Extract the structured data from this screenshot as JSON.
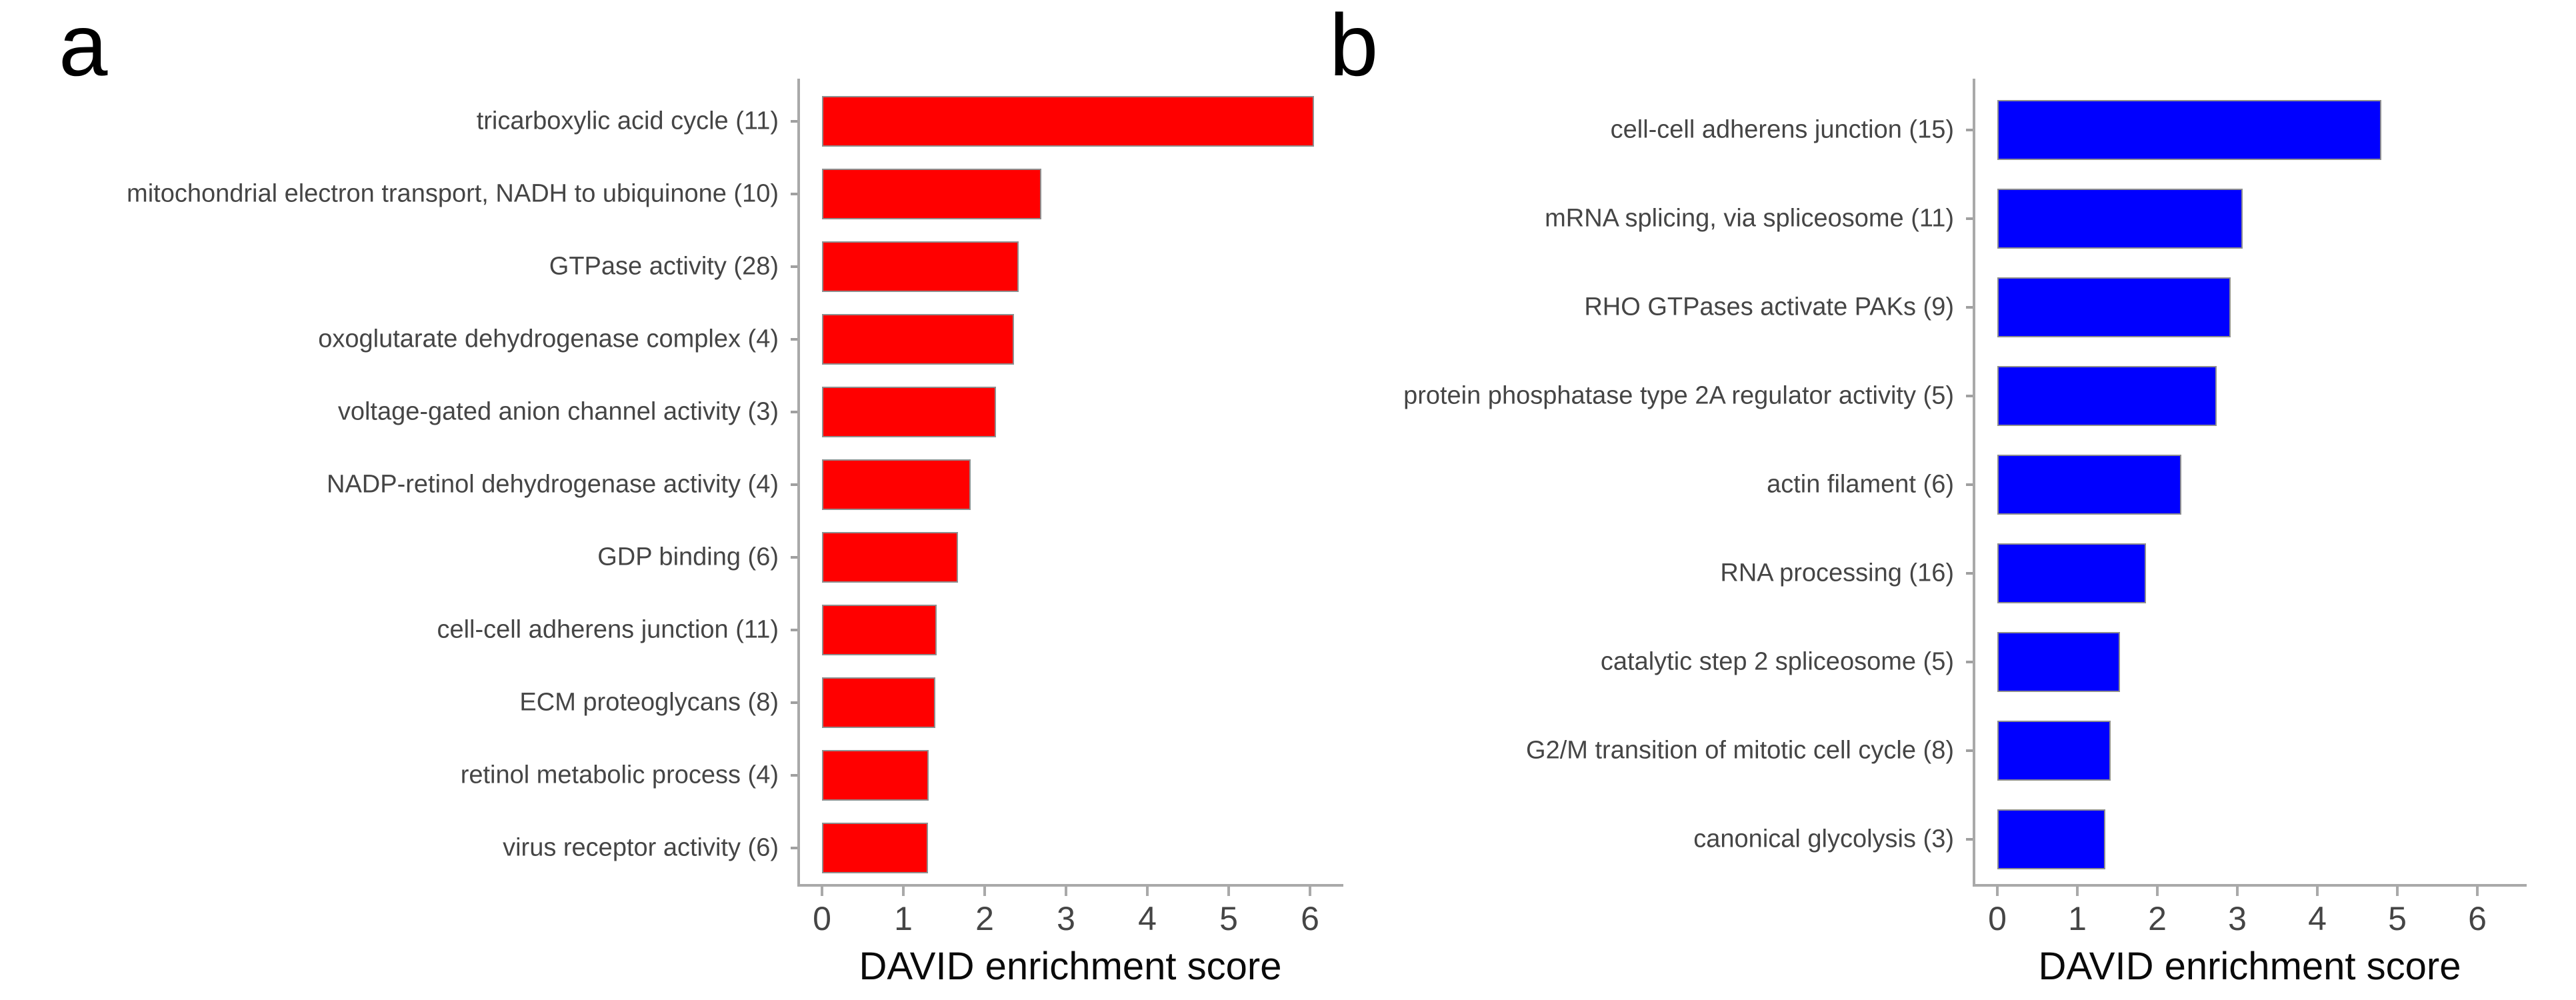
{
  "figure": {
    "background": "#ffffff"
  },
  "colors": {
    "panel_a_bar": "#ff0000",
    "panel_b_bar": "#0000ff",
    "bar_border": "#8f8f8f",
    "axis_line": "#a9a9a9",
    "tick_label": "#454545",
    "category_label": "#454545",
    "axis_title": "#0a0a0a",
    "panel_letter": "#000000"
  },
  "chart_data": [
    {
      "type": "bar",
      "orientation": "horizontal",
      "panel_letter": "a",
      "bar_color": "#ff0000",
      "categories": [
        "tricarboxylic acid cycle (11)",
        "mitochondrial electron transport, NADH to ubiquinone (10)",
        "GTPase activity (28)",
        "oxoglutarate dehydrogenase complex (4)",
        "voltage-gated anion channel activity (3)",
        "NADP-retinol dehydrogenase activity (4)",
        "GDP binding (6)",
        "cell-cell adherens junction (11)",
        "ECM proteoglycans (8)",
        "retinol metabolic process (4)",
        "virus receptor activity (6)"
      ],
      "values": [
        6.05,
        2.7,
        2.42,
        2.36,
        2.14,
        1.83,
        1.67,
        1.41,
        1.39,
        1.31,
        1.3
      ],
      "xlabel": "DAVID enrichment score",
      "xlim": [
        0,
        6.5
      ],
      "xticks": [
        0,
        1,
        2,
        3,
        4,
        5,
        6
      ],
      "grid": false,
      "legend": false
    },
    {
      "type": "bar",
      "orientation": "horizontal",
      "panel_letter": "b",
      "bar_color": "#0000ff",
      "categories": [
        "cell-cell adherens junction (15)",
        "mRNA splicing, via spliceosome (11)",
        "RHO GTPases activate PAKs (9)",
        "protein phosphatase type 2A regulator activity (5)",
        "actin filament (6)",
        "RNA processing (16)",
        "catalytic step 2 spliceosome (5)",
        "G2/M transition of mitotic cell cycle (8)",
        "canonical glycolysis (3)"
      ],
      "values": [
        4.8,
        3.07,
        2.92,
        2.74,
        2.3,
        1.86,
        1.53,
        1.42,
        1.35
      ],
      "xlabel": "DAVID enrichment score",
      "xlim": [
        0,
        6.5
      ],
      "xticks": [
        0,
        1,
        2,
        3,
        4,
        5,
        6
      ],
      "grid": false,
      "legend": false
    }
  ]
}
